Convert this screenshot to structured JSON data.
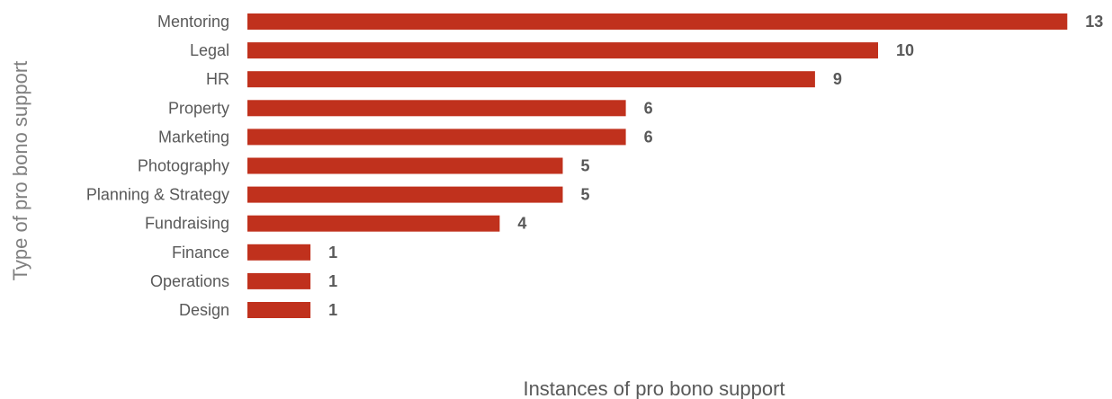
{
  "chart_data": {
    "type": "bar",
    "orientation": "horizontal",
    "categories": [
      "Mentoring",
      "Legal",
      "HR",
      "Property",
      "Marketing",
      "Photography",
      "Planning & Strategy",
      "Fundraising",
      "Finance",
      "Operations",
      "Design"
    ],
    "values": [
      13,
      10,
      9,
      6,
      6,
      5,
      5,
      4,
      1,
      1,
      1
    ],
    "xlabel": "Instances of pro bono support",
    "ylabel": "Type of pro bono support",
    "xlim": [
      0,
      13
    ],
    "grid": false,
    "data_labels": true,
    "colors": {
      "bar": "#c0311d",
      "category_text": "#595959",
      "value_text": "#595959",
      "axis_title_text": "#7f7f7f"
    }
  }
}
